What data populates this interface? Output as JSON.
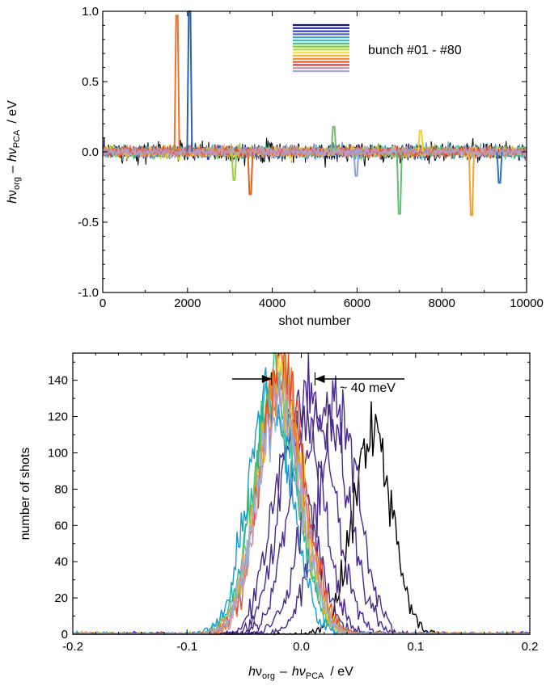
{
  "chart_data": [
    {
      "type": "line",
      "title": "",
      "xlabel": "shot number",
      "ylabel": {
        "h": "h",
        "v1": "ν",
        "s1": "org",
        "minus": "–",
        "v2": "hν",
        "s2": "PCA",
        "unit": "/ eV"
      },
      "xlim": [
        0,
        10000
      ],
      "ylim": [
        -1.0,
        1.0
      ],
      "x_ticks": [
        "0",
        "2000",
        "4000",
        "6000",
        "8000",
        "10000"
      ],
      "y_ticks": [
        "-1.0",
        "-0.5",
        "0.0",
        "0.5",
        "1.0"
      ],
      "grid": false,
      "legend": {
        "label": "bunch #01 - #80",
        "position": "top-right"
      },
      "series_colors": [
        "#1a1a5e",
        "#2b2b8c",
        "#3b3bd0",
        "#4a68d8",
        "#3aa0d8",
        "#35c0c0",
        "#40c070",
        "#7ecb3f",
        "#b4d848",
        "#f2e23a",
        "#f6b43a",
        "#f08a2a",
        "#e8582a",
        "#d8403a",
        "#c890b0",
        "#a8a8d8"
      ],
      "noise_band": {
        "center": 0.0,
        "black_width": 0.08,
        "color_width": 0.05
      },
      "spikes": [
        {
          "x": 1750,
          "y": 0.97,
          "color": "#f0702a"
        },
        {
          "x": 2050,
          "y": 1.0,
          "color": "#2a60b0"
        },
        {
          "x": 3100,
          "y": -0.2,
          "color": "#9ad040"
        },
        {
          "x": 3480,
          "y": -0.3,
          "color": "#e06020"
        },
        {
          "x": 5450,
          "y": 0.18,
          "color": "#70c070"
        },
        {
          "x": 5980,
          "y": -0.17,
          "color": "#8aa0d8"
        },
        {
          "x": 7000,
          "y": -0.44,
          "color": "#60c070"
        },
        {
          "x": 7500,
          "y": 0.15,
          "color": "#f2d030"
        },
        {
          "x": 8700,
          "y": -0.45,
          "color": "#f4a030"
        },
        {
          "x": 9360,
          "y": -0.22,
          "color": "#3070c0"
        }
      ]
    },
    {
      "type": "line",
      "title": "",
      "xlabel": {
        "h": "h",
        "v1": "ν",
        "s1": "org",
        "minus": "–",
        "v2": "hν",
        "s2": "PCA",
        "unit": "/ eV"
      },
      "ylabel": "number of shots",
      "xlim": [
        -0.2,
        0.2
      ],
      "ylim": [
        0,
        155
      ],
      "x_ticks": [
        "-0.2",
        "-0.1",
        "0.0",
        "0.1",
        "0.2"
      ],
      "y_ticks": [
        "0",
        "20",
        "40",
        "60",
        "80",
        "100",
        "120",
        "140"
      ],
      "grid": false,
      "annotation": "~ 40 meV",
      "arrow_span_ev": [
        -0.026,
        0.012
      ],
      "series": [
        {
          "color": "#000000",
          "center": 0.062,
          "sigma": 0.017,
          "peak": 110
        },
        {
          "color": "#4b2a8e",
          "center": 0.032,
          "sigma": 0.018,
          "peak": 125
        },
        {
          "color": "#4b2a8e",
          "center": 0.022,
          "sigma": 0.019,
          "peak": 128
        },
        {
          "color": "#4b2a8e",
          "center": 0.01,
          "sigma": 0.019,
          "peak": 130
        },
        {
          "color": "#4b2a8e",
          "center": 0.0,
          "sigma": 0.018,
          "peak": 128
        },
        {
          "color": "#4b2a8e",
          "center": -0.008,
          "sigma": 0.018,
          "peak": 110
        },
        {
          "color": "#1a9ad0",
          "center": -0.028,
          "sigma": 0.019,
          "peak": 135
        },
        {
          "color": "#25b0b0",
          "center": -0.024,
          "sigma": 0.019,
          "peak": 132
        },
        {
          "color": "#3cc070",
          "center": -0.022,
          "sigma": 0.019,
          "peak": 138
        },
        {
          "color": "#8acb3f",
          "center": -0.02,
          "sigma": 0.019,
          "peak": 140
        },
        {
          "color": "#e8e040",
          "center": -0.018,
          "sigma": 0.019,
          "peak": 142
        },
        {
          "color": "#f4a830",
          "center": -0.02,
          "sigma": 0.019,
          "peak": 140
        },
        {
          "color": "#f07a2a",
          "center": -0.018,
          "sigma": 0.019,
          "peak": 145
        },
        {
          "color": "#e84a28",
          "center": -0.016,
          "sigma": 0.019,
          "peak": 150
        },
        {
          "color": "#c890b0",
          "center": -0.018,
          "sigma": 0.019,
          "peak": 132
        },
        {
          "color": "#9ab0dc",
          "center": -0.02,
          "sigma": 0.019,
          "peak": 128
        }
      ]
    }
  ]
}
